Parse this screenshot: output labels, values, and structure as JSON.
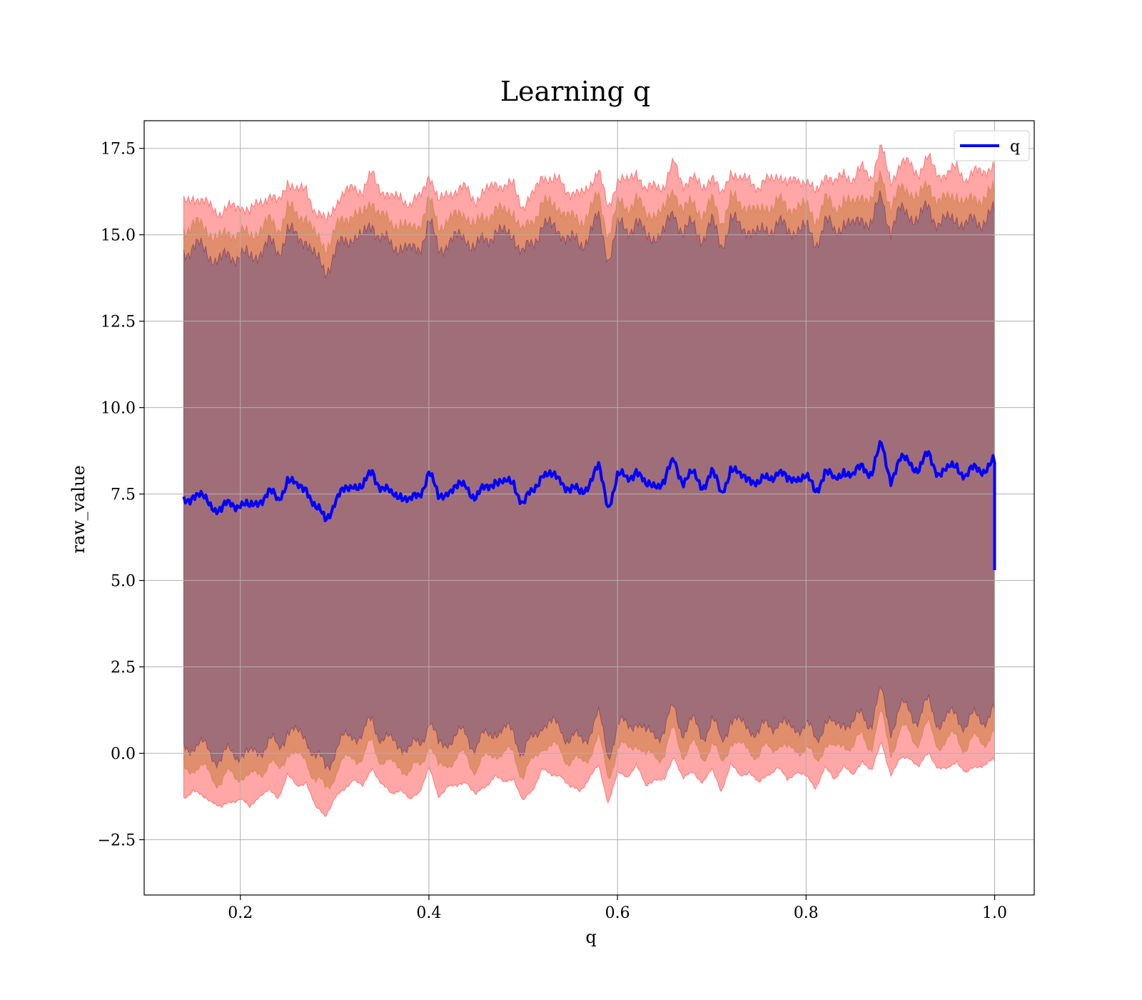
{
  "chart_data": {
    "type": "line",
    "title": "Learning q",
    "xlabel": "q",
    "ylabel": "raw_value",
    "xlim": [
      0.098,
      1.042
    ],
    "ylim": [
      -4.1,
      18.3
    ],
    "xticks": [
      0.2,
      0.4,
      0.6,
      0.8,
      1.0
    ],
    "xtick_labels": [
      "0.2",
      "0.4",
      "0.6",
      "0.8",
      "1.0"
    ],
    "yticks": [
      -2.5,
      0.0,
      2.5,
      5.0,
      7.5,
      10.0,
      12.5,
      15.0,
      17.5
    ],
    "ytick_labels": [
      "−2.5",
      "0.0",
      "2.5",
      "5.0",
      "7.5",
      "10.0",
      "12.5",
      "15.0",
      "17.5"
    ],
    "grid": true,
    "legend": {
      "position": "top-right",
      "entries": [
        "q"
      ]
    },
    "colors": {
      "line": "#0000ff",
      "band_outer": "#ff0000",
      "band_middle": "#c87a3c",
      "band_inner": "#7a3250",
      "background": "#a06e78"
    },
    "series": [
      {
        "name": "q",
        "x": [
          0.14,
          0.15,
          0.16,
          0.17,
          0.18,
          0.19,
          0.2,
          0.21,
          0.22,
          0.23,
          0.24,
          0.25,
          0.26,
          0.27,
          0.28,
          0.29,
          0.3,
          0.31,
          0.32,
          0.33,
          0.34,
          0.35,
          0.36,
          0.37,
          0.38,
          0.39,
          0.4,
          0.41,
          0.42,
          0.43,
          0.44,
          0.45,
          0.46,
          0.47,
          0.48,
          0.49,
          0.5,
          0.51,
          0.52,
          0.53,
          0.54,
          0.55,
          0.56,
          0.57,
          0.58,
          0.59,
          0.6,
          0.61,
          0.62,
          0.63,
          0.64,
          0.65,
          0.66,
          0.67,
          0.68,
          0.69,
          0.7,
          0.71,
          0.72,
          0.73,
          0.74,
          0.75,
          0.76,
          0.77,
          0.78,
          0.79,
          0.8,
          0.81,
          0.82,
          0.83,
          0.84,
          0.85,
          0.86,
          0.87,
          0.88,
          0.89,
          0.9,
          0.91,
          0.92,
          0.93,
          0.94,
          0.95,
          0.96,
          0.97,
          0.98,
          0.99,
          1.0,
          1.0
        ],
        "y": [
          7.3,
          7.55,
          7.3,
          7.25,
          7.0,
          7.2,
          7.3,
          7.0,
          7.4,
          7.5,
          7.3,
          8.0,
          7.6,
          7.8,
          7.0,
          6.8,
          7.3,
          7.5,
          7.9,
          7.6,
          8.2,
          7.7,
          7.4,
          7.6,
          7.2,
          7.5,
          8.2,
          7.3,
          7.7,
          7.6,
          7.8,
          7.4,
          7.6,
          8.0,
          7.7,
          7.9,
          7.2,
          7.5,
          8.2,
          7.9,
          8.0,
          7.6,
          7.5,
          7.9,
          8.2,
          7.2,
          8.0,
          7.9,
          8.3,
          7.6,
          7.9,
          7.8,
          8.5,
          7.9,
          8.0,
          7.8,
          8.1,
          7.5,
          8.3,
          7.9,
          8.1,
          7.7,
          8.0,
          8.2,
          7.8,
          8.1,
          7.9,
          7.6,
          8.2,
          7.8,
          8.3,
          7.9,
          8.4,
          8.1,
          8.9,
          8.0,
          8.4,
          8.5,
          8.2,
          8.6,
          8.2,
          8.1,
          8.4,
          8.0,
          8.2,
          8.3,
          8.4,
          5.3
        ]
      }
    ]
  }
}
